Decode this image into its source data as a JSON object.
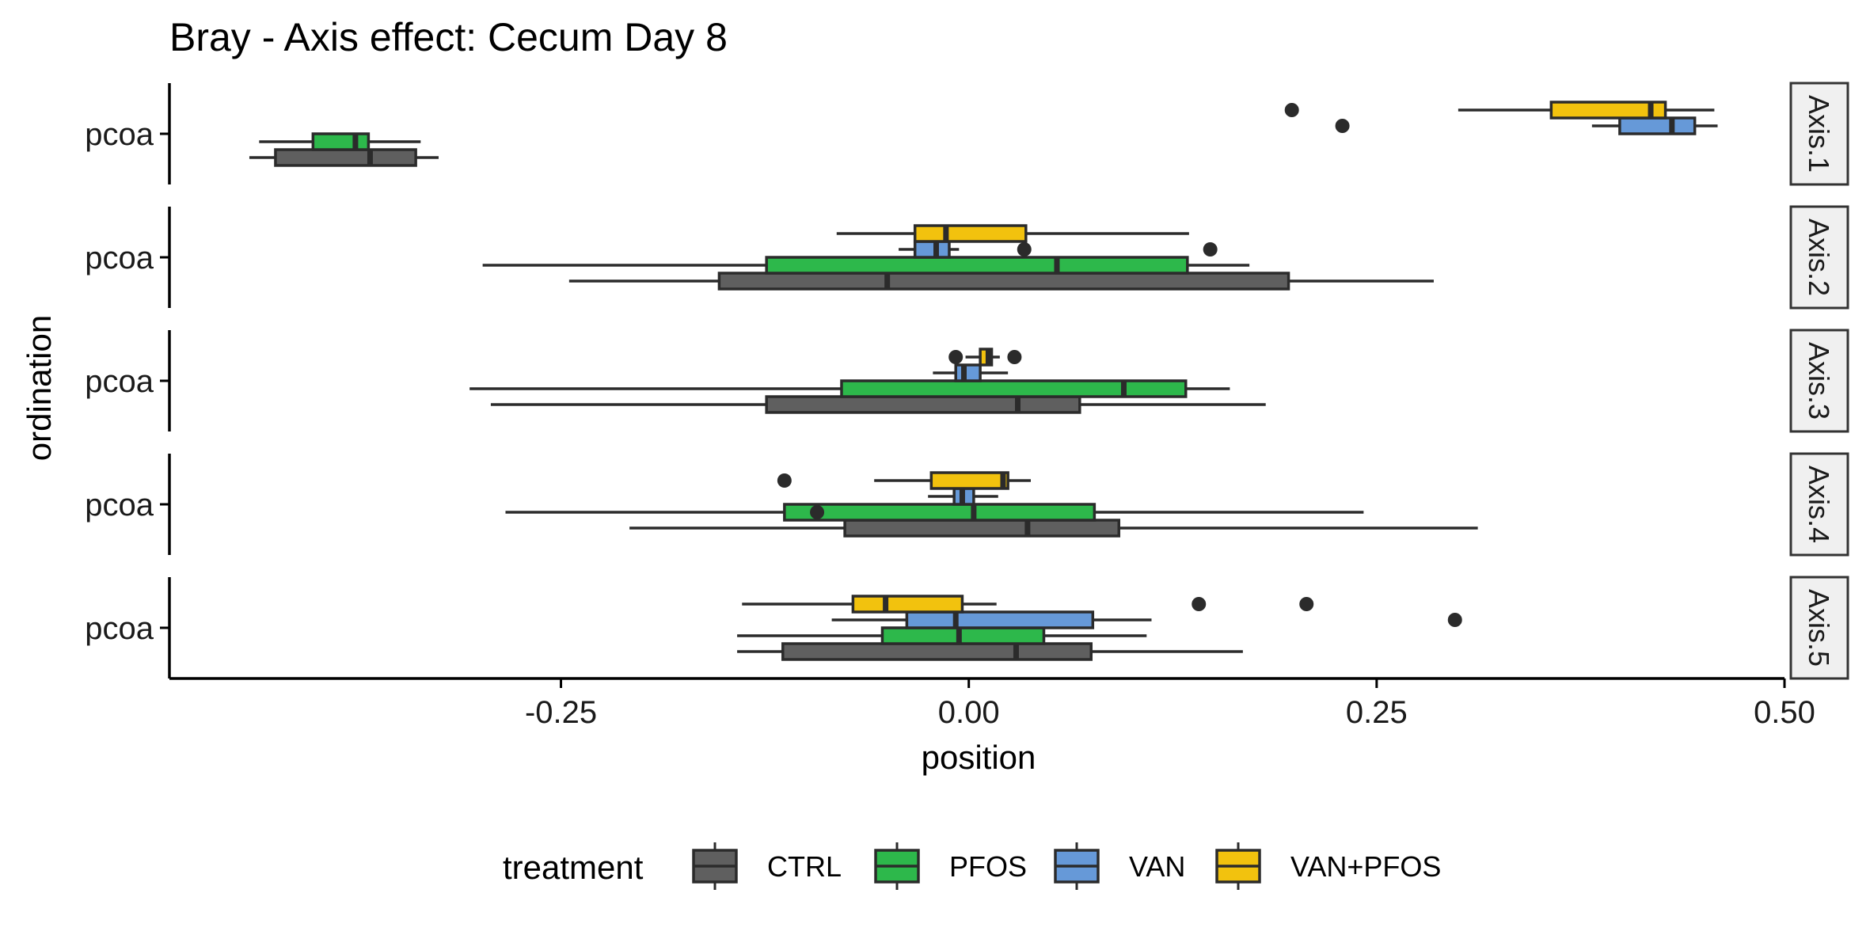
{
  "chart_data": {
    "type": "boxplot",
    "orientation": "horizontal",
    "title": "Bray - Axis effect: Cecum Day 8",
    "xlabel": "position",
    "ylabel": "ordination",
    "xlim": [
      -0.49,
      0.5
    ],
    "x_ticks": [
      -0.25,
      0.0,
      0.25,
      0.5
    ],
    "x_tick_labels": [
      "-0.25",
      "0.00",
      "0.25",
      "0.50"
    ],
    "grid": false,
    "legend": {
      "title": "treatment",
      "position": "bottom",
      "entries": [
        "CTRL",
        "PFOS",
        "VAN",
        "VAN+PFOS"
      ]
    },
    "colors": {
      "CTRL": "#5f5f5f",
      "PFOS": "#2db84b",
      "VAN": "#6699d8",
      "VAN+PFOS": "#f2c20e",
      "outline": "#2b2b2b",
      "strip_fill": "#f0f0f0"
    },
    "facets": [
      {
        "strip": "Axis.1",
        "y_label": "pcoa",
        "boxes": [
          {
            "group": "CTRL",
            "whisker_low": -0.441,
            "q1": -0.425,
            "median": -0.367,
            "q3": -0.339,
            "whisker_high": -0.325,
            "outliers": []
          },
          {
            "group": "PFOS",
            "whisker_low": -0.435,
            "q1": -0.402,
            "median": -0.376,
            "q3": -0.368,
            "whisker_high": -0.336,
            "outliers": []
          },
          {
            "group": "VAN",
            "whisker_low": 0.382,
            "q1": 0.399,
            "median": 0.431,
            "q3": 0.445,
            "whisker_high": 0.459,
            "outliers": [
              0.229
            ]
          },
          {
            "group": "VAN+PFOS",
            "whisker_low": 0.3,
            "q1": 0.357,
            "median": 0.418,
            "q3": 0.427,
            "whisker_high": 0.457,
            "outliers": [
              0.198
            ]
          }
        ]
      },
      {
        "strip": "Axis.2",
        "y_label": "pcoa",
        "boxes": [
          {
            "group": "CTRL",
            "whisker_low": -0.245,
            "q1": -0.153,
            "median": -0.05,
            "q3": 0.196,
            "whisker_high": 0.285,
            "outliers": []
          },
          {
            "group": "PFOS",
            "whisker_low": -0.298,
            "q1": -0.124,
            "median": 0.054,
            "q3": 0.134,
            "whisker_high": 0.172,
            "outliers": []
          },
          {
            "group": "VAN",
            "whisker_low": -0.043,
            "q1": -0.033,
            "median": -0.02,
            "q3": -0.012,
            "whisker_high": -0.006,
            "outliers": [
              0.034,
              0.148
            ]
          },
          {
            "group": "VAN+PFOS",
            "whisker_low": -0.081,
            "q1": -0.033,
            "median": -0.014,
            "q3": 0.035,
            "whisker_high": 0.135,
            "outliers": []
          }
        ]
      },
      {
        "strip": "Axis.3",
        "y_label": "pcoa",
        "boxes": [
          {
            "group": "CTRL",
            "whisker_low": -0.293,
            "q1": -0.124,
            "median": 0.03,
            "q3": 0.068,
            "whisker_high": 0.182,
            "outliers": []
          },
          {
            "group": "PFOS",
            "whisker_low": -0.306,
            "q1": -0.078,
            "median": 0.095,
            "q3": 0.133,
            "whisker_high": 0.16,
            "outliers": []
          },
          {
            "group": "VAN",
            "whisker_low": -0.022,
            "q1": -0.008,
            "median": -0.003,
            "q3": 0.007,
            "whisker_high": 0.024,
            "outliers": []
          },
          {
            "group": "VAN+PFOS",
            "whisker_low": -0.002,
            "q1": 0.007,
            "median": 0.012,
            "q3": 0.014,
            "whisker_high": 0.019,
            "outliers": [
              -0.008,
              0.028
            ]
          }
        ]
      },
      {
        "strip": "Axis.4",
        "y_label": "pcoa",
        "boxes": [
          {
            "group": "CTRL",
            "whisker_low": -0.208,
            "q1": -0.076,
            "median": 0.036,
            "q3": 0.092,
            "whisker_high": 0.312,
            "outliers": []
          },
          {
            "group": "PFOS",
            "whisker_low": -0.284,
            "q1": -0.113,
            "median": 0.003,
            "q3": 0.077,
            "whisker_high": 0.242,
            "outliers": [
              -0.093
            ]
          },
          {
            "group": "VAN",
            "whisker_low": -0.025,
            "q1": -0.009,
            "median": -0.004,
            "q3": 0.003,
            "whisker_high": 0.018,
            "outliers": []
          },
          {
            "group": "VAN+PFOS",
            "whisker_low": -0.058,
            "q1": -0.023,
            "median": 0.021,
            "q3": 0.024,
            "whisker_high": 0.038,
            "outliers": [
              -0.113
            ]
          }
        ]
      },
      {
        "strip": "Axis.5",
        "y_label": "pcoa",
        "boxes": [
          {
            "group": "CTRL",
            "whisker_low": -0.142,
            "q1": -0.114,
            "median": 0.029,
            "q3": 0.075,
            "whisker_high": 0.168,
            "outliers": []
          },
          {
            "group": "PFOS",
            "whisker_low": -0.142,
            "q1": -0.053,
            "median": -0.006,
            "q3": 0.046,
            "whisker_high": 0.109,
            "outliers": []
          },
          {
            "group": "VAN",
            "whisker_low": -0.084,
            "q1": -0.038,
            "median": -0.008,
            "q3": 0.076,
            "whisker_high": 0.112,
            "outliers": [
              0.298
            ]
          },
          {
            "group": "VAN+PFOS",
            "whisker_low": -0.139,
            "q1": -0.071,
            "median": -0.051,
            "q3": -0.004,
            "whisker_high": 0.017,
            "outliers": [
              0.141,
              0.207
            ]
          }
        ]
      }
    ]
  }
}
